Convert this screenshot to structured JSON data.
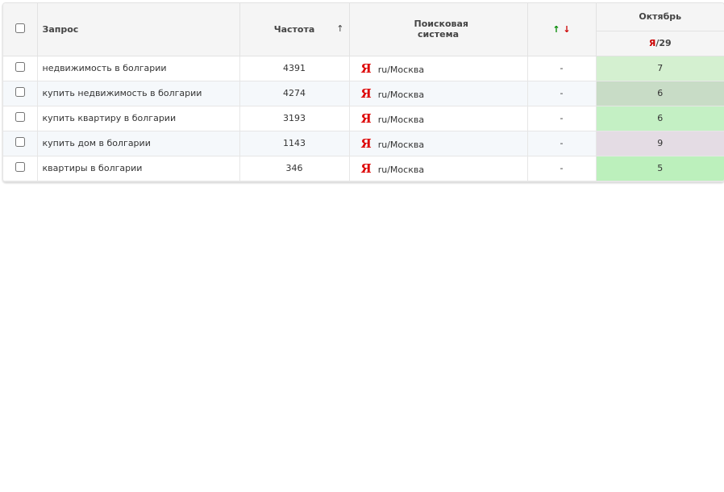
{
  "table": {
    "header": {
      "query": "Запрос",
      "frequency": "Частота",
      "sort_arrow": "↑",
      "engine": "Поисковая система",
      "arrow_up": "↑",
      "arrow_down": "↓",
      "month": "Октябрь",
      "engine_logo": "Я",
      "day": "/29"
    },
    "rows": [
      {
        "query": "недвижимость в болгарии",
        "frequency": 4391,
        "engine_logo": "Я",
        "region": "ru/Москва",
        "change": "-",
        "position": 7,
        "color": "#d4f0d0"
      },
      {
        "query": "купить недвижимость в болгарии",
        "frequency": 4274,
        "engine_logo": "Я",
        "region": "ru/Москва",
        "change": "-",
        "position": 6,
        "color": "#c8dcc6"
      },
      {
        "query": "купить квартиру в болгарии",
        "frequency": 3193,
        "engine_logo": "Я",
        "region": "ru/Москва",
        "change": "-",
        "position": 6,
        "color": "#c4f0c4"
      },
      {
        "query": "купить дом в болгарии",
        "frequency": 1143,
        "engine_logo": "Я",
        "region": "ru/Москва",
        "change": "-",
        "position": 9,
        "color": "#e4dce4"
      },
      {
        "query": "квартиры в болгарии",
        "frequency": 346,
        "engine_logo": "Я",
        "region": "ru/Москва",
        "change": "-",
        "position": 5,
        "color": "#bcf0bc"
      }
    ]
  }
}
